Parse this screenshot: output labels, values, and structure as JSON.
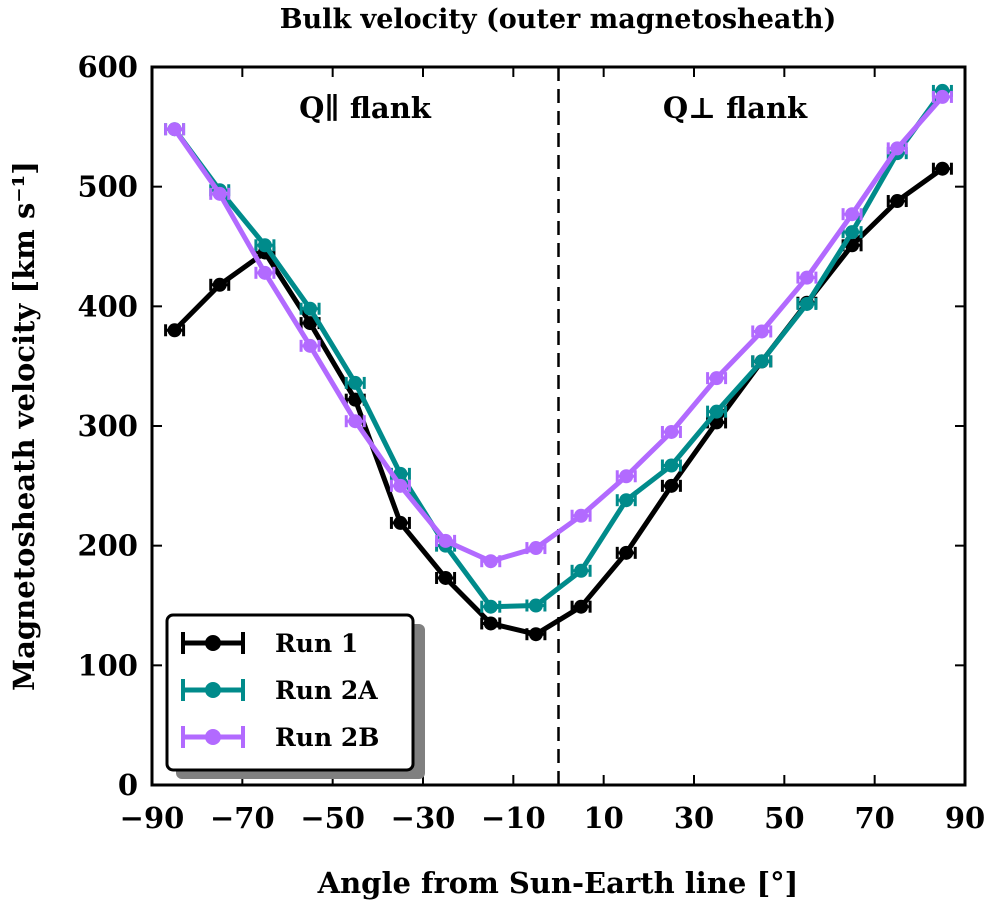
{
  "chart_data": {
    "type": "line",
    "title": "Bulk velocity (outer magnetosheath)",
    "xlabel": "Angle from Sun-Earth line [°]",
    "ylabel": "Magnetosheath velocity [km s⁻¹]",
    "xlim": [
      -90,
      90
    ],
    "ylim": [
      0,
      600
    ],
    "xticks": [
      "−90",
      "−70",
      "−50",
      "−30",
      "−10",
      "10",
      "30",
      "50",
      "70",
      "90"
    ],
    "xtick_values": [
      -90,
      -70,
      -50,
      -30,
      -10,
      10,
      30,
      50,
      70,
      90
    ],
    "yticks": [
      "0",
      "100",
      "200",
      "300",
      "400",
      "500",
      "600"
    ],
    "ytick_values": [
      0,
      100,
      200,
      300,
      400,
      500,
      600
    ],
    "vline_x": 0,
    "annotations": {
      "left": "Q∥ flank",
      "right": "Q⊥ flank"
    },
    "legend_position": "lower-left",
    "x": [
      -85,
      -75,
      -65,
      -55,
      -45,
      -35,
      -25,
      -15,
      -5,
      5,
      15,
      25,
      35,
      45,
      55,
      65,
      75,
      85
    ],
    "series": [
      {
        "name": "Run 1",
        "color": "#000000",
        "values": [
          380,
          418,
          445,
          386,
          322,
          219,
          173,
          135,
          126,
          149,
          194,
          250,
          303,
          354,
          403,
          451,
          488,
          515
        ]
      },
      {
        "name": "Run 2A",
        "color": "#008b8b",
        "values": [
          548,
          497,
          451,
          398,
          336,
          260,
          200,
          149,
          150,
          179,
          238,
          267,
          312,
          354,
          402,
          462,
          528,
          580
        ]
      },
      {
        "name": "Run 2B",
        "color": "#b26aff",
        "values": [
          548,
          494,
          428,
          367,
          304,
          250,
          204,
          187,
          198,
          225,
          258,
          295,
          340,
          379,
          424,
          477,
          532,
          575
        ]
      }
    ]
  }
}
